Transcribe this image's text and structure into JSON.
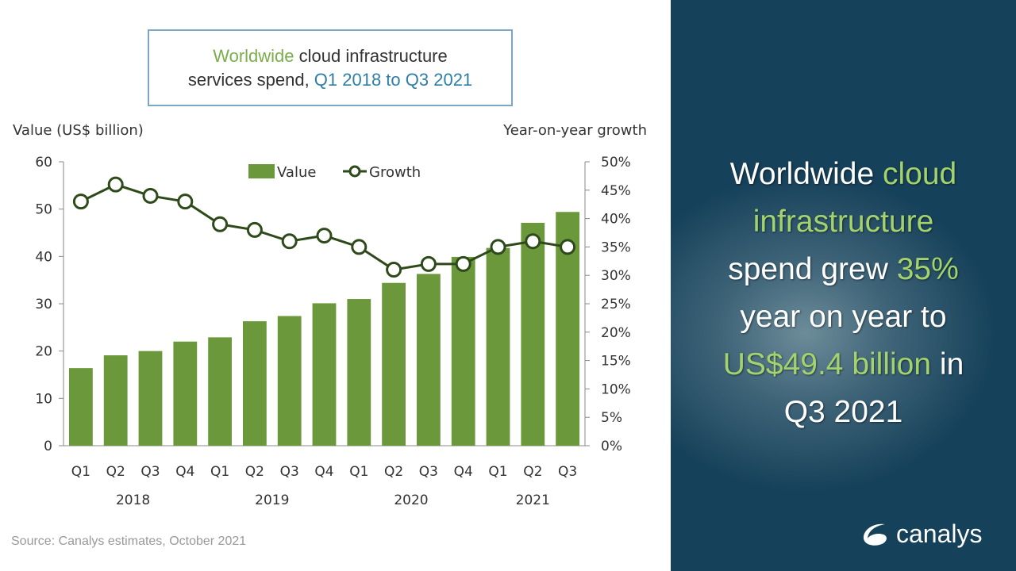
{
  "title": {
    "part1": "Worldwide",
    "part2": " cloud infrastructure",
    "part3": "services spend, ",
    "part4": "Q1 2018 to Q3 2021"
  },
  "source": "Source: Canalys estimates, October 2021",
  "colors": {
    "bar": "#6b983a",
    "line": "#2e4a1b",
    "accent_green": "#a3d36f",
    "panel_bg": "#16415a"
  },
  "headline": {
    "l1a": "Worldwide ",
    "l1b": "cloud",
    "l2": "infrastructure",
    "l3a": "spend grew ",
    "l3b": "35%",
    "l4": "year on year to",
    "l5a": "US$49.4 billion",
    "l5b": " in",
    "l6": "Q3 2021"
  },
  "logo": {
    "text": "canalys",
    "icon": "canalys-swoosh-icon"
  },
  "chart_data": {
    "type": "bar",
    "title": "Worldwide cloud infrastructure services spend, Q1 2018 to Q3 2021",
    "ylabel": "Value (US$ billion)",
    "y2label": "Year-on-year growth",
    "categories": [
      "Q1",
      "Q2",
      "Q3",
      "Q4",
      "Q1",
      "Q2",
      "Q3",
      "Q4",
      "Q1",
      "Q2",
      "Q3",
      "Q4",
      "Q1",
      "Q2",
      "Q3"
    ],
    "years": [
      {
        "label": "2018",
        "span": [
          0,
          3
        ]
      },
      {
        "label": "2019",
        "span": [
          4,
          7
        ]
      },
      {
        "label": "2020",
        "span": [
          8,
          11
        ]
      },
      {
        "label": "2021",
        "span": [
          12,
          14
        ]
      }
    ],
    "ylim": [
      0,
      60
    ],
    "yticks": [
      "0",
      "10",
      "20",
      "30",
      "40",
      "50",
      "60"
    ],
    "y2lim": [
      0,
      50
    ],
    "y2ticks": [
      "0%",
      "5%",
      "10%",
      "15%",
      "20%",
      "25%",
      "30%",
      "35%",
      "40%",
      "45%",
      "50%"
    ],
    "legend": {
      "placement": "top-center",
      "items": [
        "Value",
        "Growth"
      ]
    },
    "series": [
      {
        "name": "Value",
        "type": "bar",
        "axis": "left",
        "values": [
          16.4,
          19.1,
          20.0,
          22.0,
          22.9,
          26.3,
          27.4,
          30.1,
          31.0,
          34.4,
          36.3,
          39.9,
          41.8,
          47.1,
          49.4
        ]
      },
      {
        "name": "Growth",
        "type": "line",
        "axis": "right",
        "values": [
          43,
          46,
          44,
          43,
          39,
          38,
          36,
          37,
          35,
          31,
          32,
          32,
          35,
          36,
          35
        ]
      }
    ]
  }
}
